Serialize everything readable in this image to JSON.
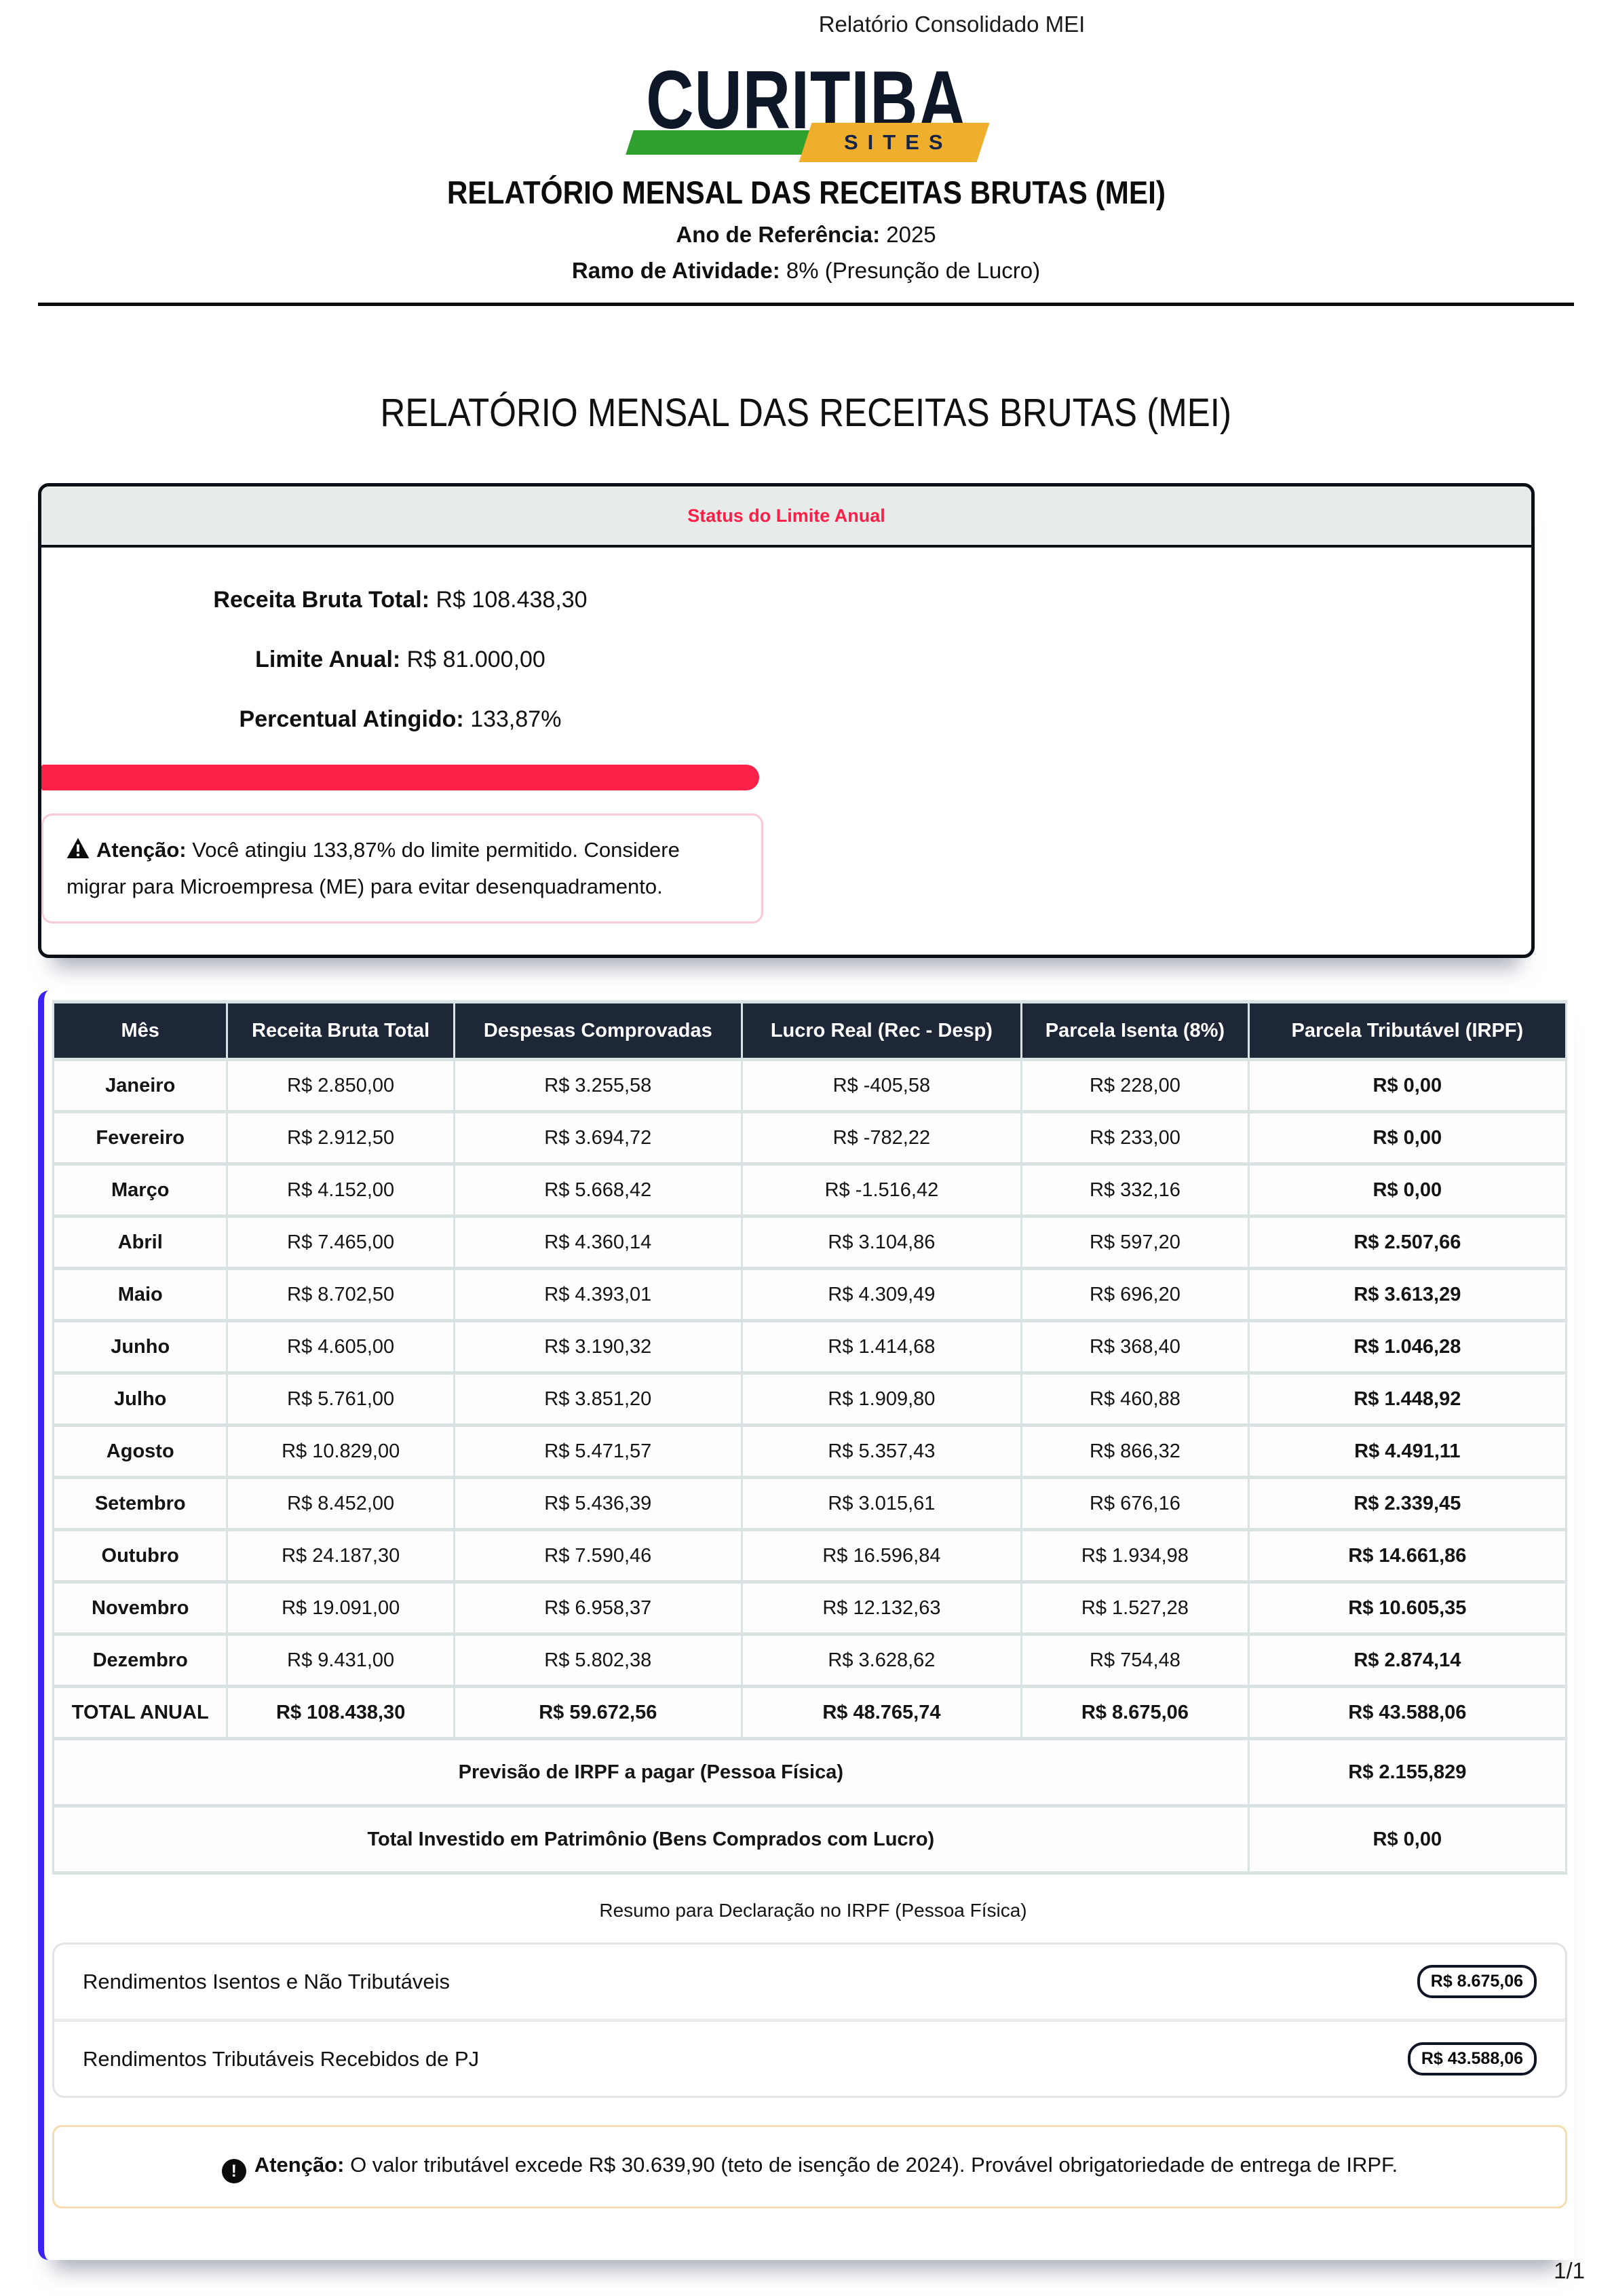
{
  "print_header": "Relatório Consolidado MEI",
  "footer": {
    "page": "1/1"
  },
  "logo": {
    "brand": "CURITIBA",
    "sub": "SITES"
  },
  "doc_header": {
    "title": "RELATÓRIO MENSAL DAS RECEITAS BRUTAS (MEI)",
    "year_label": "Ano de Referência:",
    "year_value": "2025",
    "activity_label": "Ramo de Atividade:",
    "activity_value": "8% (Presunção de Lucro)"
  },
  "main_title": "RELATÓRIO MENSAL DAS RECEITAS BRUTAS (MEI)",
  "status_card": {
    "band_title": "Status do Limite Anual",
    "lines": [
      {
        "label": "Receita Bruta Total:",
        "value": "R$ 108.438,30"
      },
      {
        "label": "Limite Anual:",
        "value": "R$ 81.000,00"
      },
      {
        "label": "Percentual Atingido:",
        "value": "133,87%"
      }
    ],
    "warning": {
      "label": "Atenção:",
      "text": "Você atingiu 133,87% do limite permitido. Considere migrar para Microempresa (ME) para evitar desenquadramento."
    }
  },
  "table": {
    "columns": [
      "Mês",
      "Receita Bruta Total",
      "Despesas Comprovadas",
      "Lucro Real (Rec - Desp)",
      "Parcela Isenta (8%)",
      "Parcela Tributável (IRPF)"
    ],
    "rows": [
      {
        "month": "Janeiro",
        "values": [
          "R$ 2.850,00",
          "R$ 3.255,58",
          "R$ -405,58",
          "R$ 228,00",
          "R$ 0,00"
        ]
      },
      {
        "month": "Fevereiro",
        "values": [
          "R$ 2.912,50",
          "R$ 3.694,72",
          "R$ -782,22",
          "R$ 233,00",
          "R$ 0,00"
        ]
      },
      {
        "month": "Março",
        "values": [
          "R$ 4.152,00",
          "R$ 5.668,42",
          "R$ -1.516,42",
          "R$ 332,16",
          "R$ 0,00"
        ]
      },
      {
        "month": "Abril",
        "values": [
          "R$ 7.465,00",
          "R$ 4.360,14",
          "R$ 3.104,86",
          "R$ 597,20",
          "R$ 2.507,66"
        ]
      },
      {
        "month": "Maio",
        "values": [
          "R$ 8.702,50",
          "R$ 4.393,01",
          "R$ 4.309,49",
          "R$ 696,20",
          "R$ 3.613,29"
        ]
      },
      {
        "month": "Junho",
        "values": [
          "R$ 4.605,00",
          "R$ 3.190,32",
          "R$ 1.414,68",
          "R$ 368,40",
          "R$ 1.046,28"
        ]
      },
      {
        "month": "Julho",
        "values": [
          "R$ 5.761,00",
          "R$ 3.851,20",
          "R$ 1.909,80",
          "R$ 460,88",
          "R$ 1.448,92"
        ]
      },
      {
        "month": "Agosto",
        "values": [
          "R$ 10.829,00",
          "R$ 5.471,57",
          "R$ 5.357,43",
          "R$ 866,32",
          "R$ 4.491,11"
        ]
      },
      {
        "month": "Setembro",
        "values": [
          "R$ 8.452,00",
          "R$ 5.436,39",
          "R$ 3.015,61",
          "R$ 676,16",
          "R$ 2.339,45"
        ]
      },
      {
        "month": "Outubro",
        "values": [
          "R$ 24.187,30",
          "R$ 7.590,46",
          "R$ 16.596,84",
          "R$ 1.934,98",
          "R$ 14.661,86"
        ]
      },
      {
        "month": "Novembro",
        "values": [
          "R$ 19.091,00",
          "R$ 6.958,37",
          "R$ 12.132,63",
          "R$ 1.527,28",
          "R$ 10.605,35"
        ]
      },
      {
        "month": "Dezembro",
        "values": [
          "R$ 9.431,00",
          "R$ 5.802,38",
          "R$ 3.628,62",
          "R$ 754,48",
          "R$ 2.874,14"
        ]
      }
    ],
    "total_row": {
      "month": "TOTAL ANUAL",
      "values": [
        "R$ 108.438,30",
        "R$ 59.672,56",
        "R$ 48.765,74",
        "R$ 8.675,06",
        "R$ 43.588,06"
      ]
    },
    "summary_rows": [
      {
        "label": "Previsão de IRPF a pagar (Pessoa Física)",
        "value": "R$ 2.155,829"
      },
      {
        "label": "Total Investido em Patrimônio (Bens Comprados com Lucro)",
        "value": "R$ 0,00"
      }
    ]
  },
  "irpf_summary": {
    "heading": "Resumo para Declaração no IRPF (Pessoa Física)",
    "items": [
      {
        "label": "Rendimentos Isentos e Não Tributáveis",
        "value": "R$ 8.675,06"
      },
      {
        "label": "Rendimentos Tributáveis Recebidos de PJ",
        "value": "R$ 43.588,06"
      }
    ],
    "warning": {
      "label": "Atenção:",
      "text": "O valor tributável excede R$ 30.639,90 (teto de isenção de 2024). Provável obrigatoriedade de entrega de IRPF."
    }
  },
  "colors": {
    "red": "#fb2047",
    "navy": "#1d2737",
    "blue": "#3b24f2",
    "green": "#2da02e",
    "yellow": "#f0ae2d",
    "pink": "#f9c9d6",
    "cream": "#f4ddb0",
    "band": "#e7ebe9",
    "tborder": "#d9e3e4"
  }
}
